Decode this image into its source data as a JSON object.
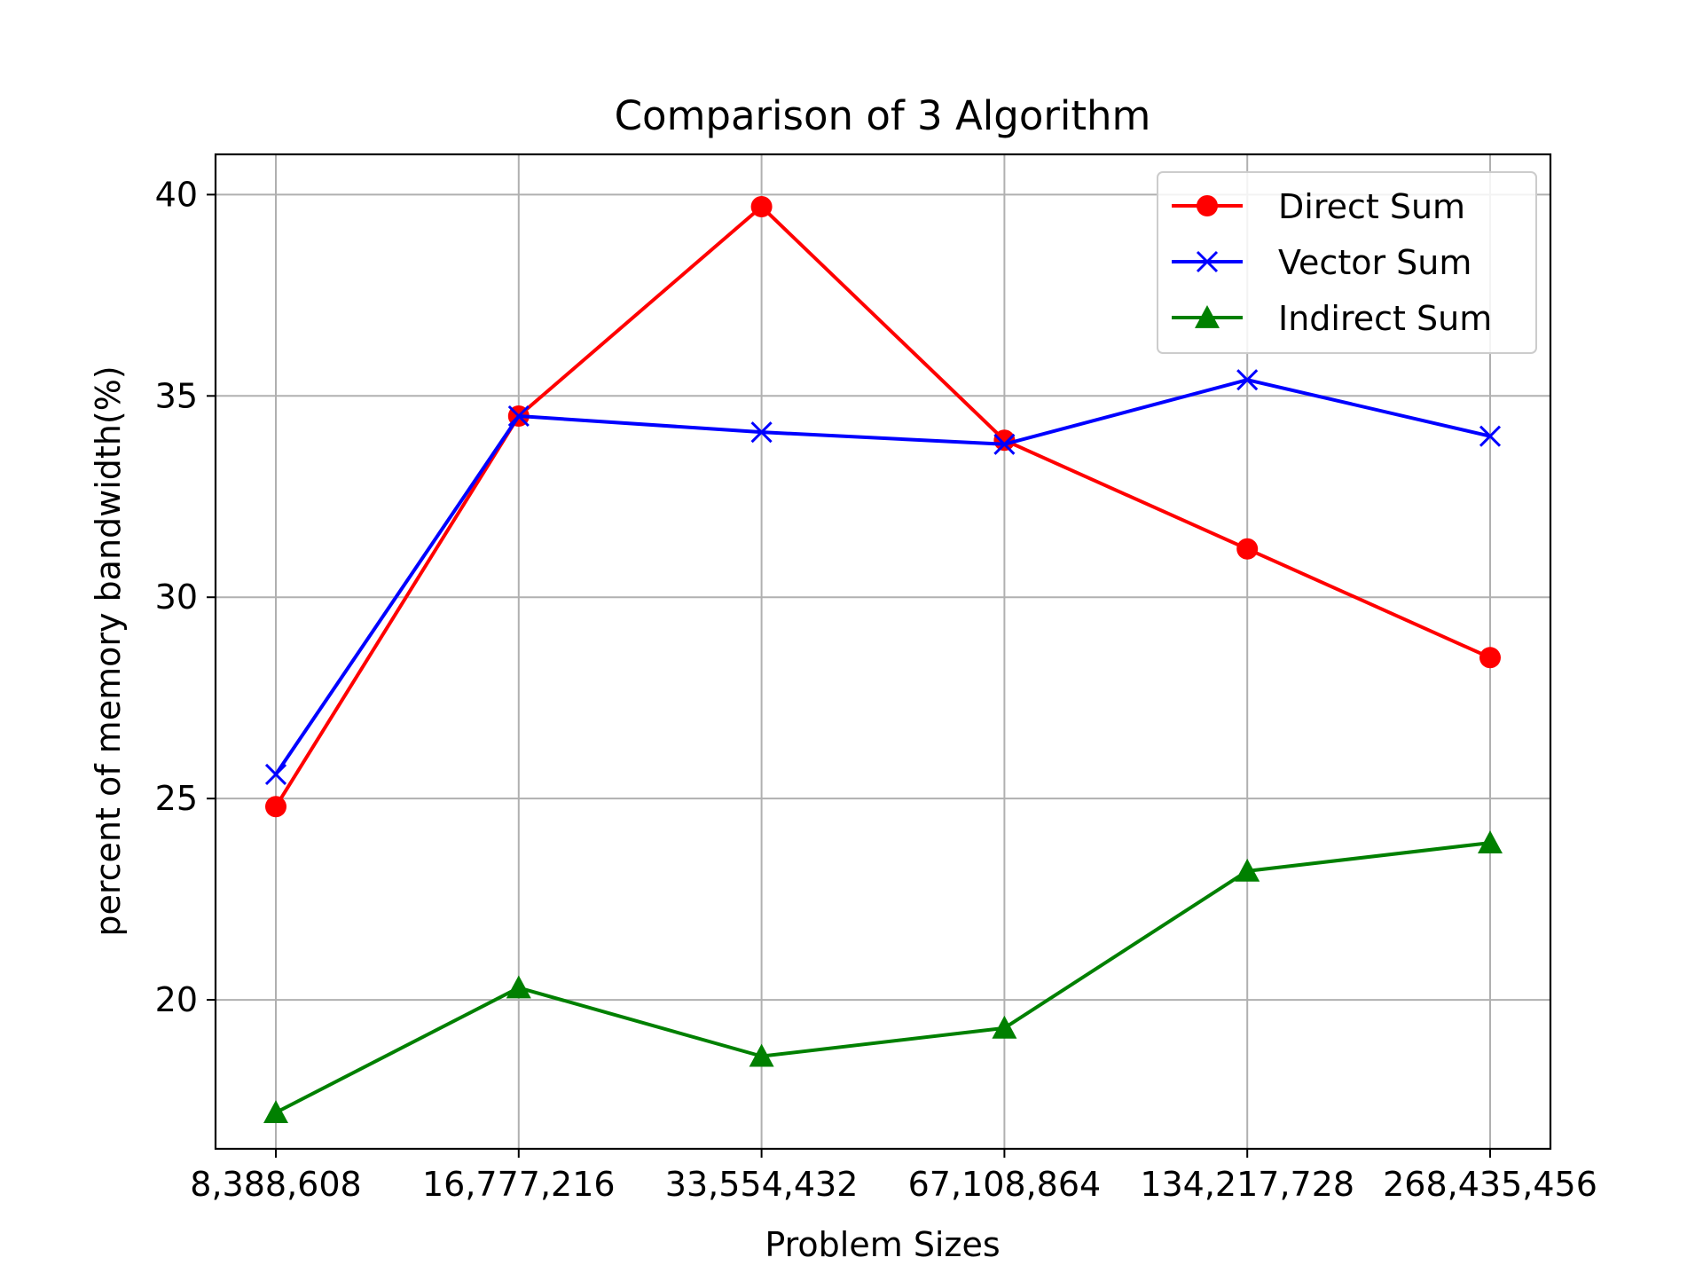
{
  "chart_data": {
    "type": "line",
    "title": "Comparison of 3 Algorithm",
    "xlabel": "Problem Sizes",
    "ylabel": "percent of memory bandwidth(%)",
    "categories": [
      "8,388,608",
      "16,777,216",
      "33,554,432",
      "67,108,864",
      "134,217,728",
      "268,435,456"
    ],
    "yticks": [
      "20",
      "25",
      "30",
      "35",
      "40"
    ],
    "ylim": [
      16.3,
      41.0
    ],
    "grid": true,
    "legend_position": "top-right",
    "series": [
      {
        "name": "Direct Sum",
        "color": "#ff0000",
        "marker": "circle",
        "values": [
          24.8,
          34.5,
          39.7,
          33.9,
          31.2,
          28.5
        ]
      },
      {
        "name": "Vector Sum",
        "color": "#0000ff",
        "marker": "x",
        "values": [
          25.6,
          34.5,
          34.1,
          33.8,
          35.4,
          34.0
        ]
      },
      {
        "name": "Indirect Sum",
        "color": "#008000",
        "marker": "triangle",
        "values": [
          17.2,
          20.3,
          18.6,
          19.3,
          23.2,
          23.9
        ]
      }
    ]
  }
}
